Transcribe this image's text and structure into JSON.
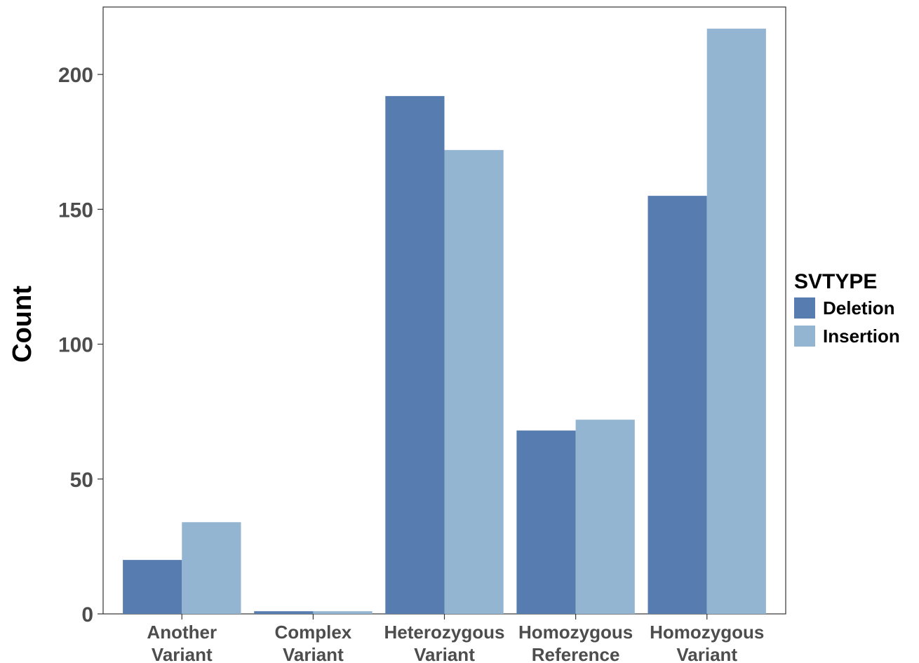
{
  "chart_data": {
    "type": "bar",
    "title": "",
    "xlabel": "",
    "ylabel": "Count",
    "categories": [
      [
        "Another",
        "Variant"
      ],
      [
        "Complex",
        "Variant"
      ],
      [
        "Heterozygous",
        "Variant"
      ],
      [
        "Homozygous",
        "Reference"
      ],
      [
        "Homozygous",
        "Variant"
      ]
    ],
    "series": [
      {
        "name": "Deletion",
        "color": "#577db0",
        "values": [
          20,
          1,
          192,
          68,
          155
        ]
      },
      {
        "name": "Insertion",
        "color": "#93b5d1",
        "values": [
          34,
          1,
          172,
          72,
          217
        ]
      }
    ],
    "ylim": [
      0,
      225
    ],
    "yticks": [
      0,
      50,
      100,
      150,
      200
    ],
    "grid": false,
    "legend": {
      "title": "SVTYPE",
      "position": "right"
    }
  }
}
